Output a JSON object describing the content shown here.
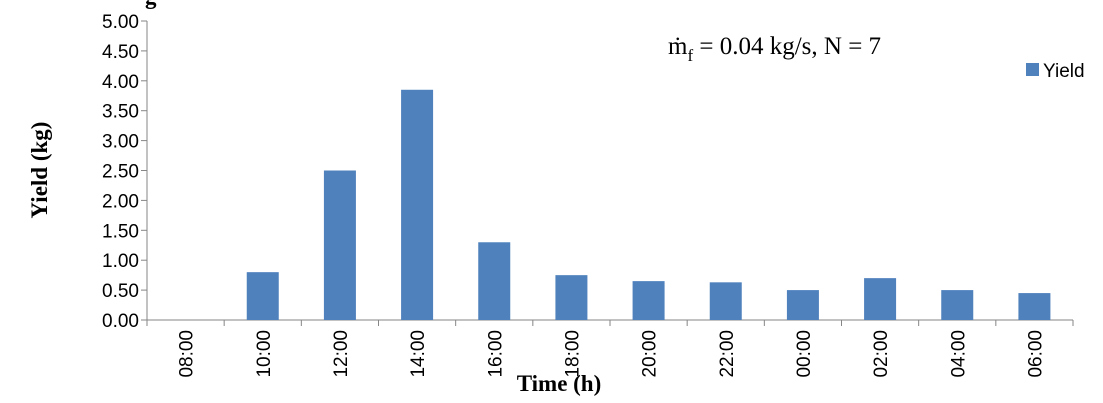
{
  "chart_data": {
    "type": "bar",
    "title": "",
    "xlabel": "Time (h)",
    "ylabel": "Yield (kg)",
    "ylim": [
      0,
      5
    ],
    "y_ticks": [
      "0.00",
      "0.50",
      "1.00",
      "1.50",
      "2.00",
      "2.50",
      "3.00",
      "3.50",
      "4.00",
      "4.50",
      "5.00"
    ],
    "categories": [
      "08:00",
      "10:00",
      "12:00",
      "14:00",
      "16:00",
      "18:00",
      "20:00",
      "22:00",
      "00:00",
      "02:00",
      "04:00",
      "06:00"
    ],
    "series": [
      {
        "name": "Yield",
        "color": "#4F81BD",
        "values": [
          0.0,
          0.8,
          2.5,
          3.85,
          1.3,
          0.75,
          0.65,
          0.63,
          0.5,
          0.7,
          0.5,
          0.45
        ]
      }
    ],
    "annotation": {
      "m": "ṁ",
      "sub": "f",
      "rest": " = 0.04 kg/s, N = 7"
    },
    "legend_position": "right",
    "grid": false
  }
}
